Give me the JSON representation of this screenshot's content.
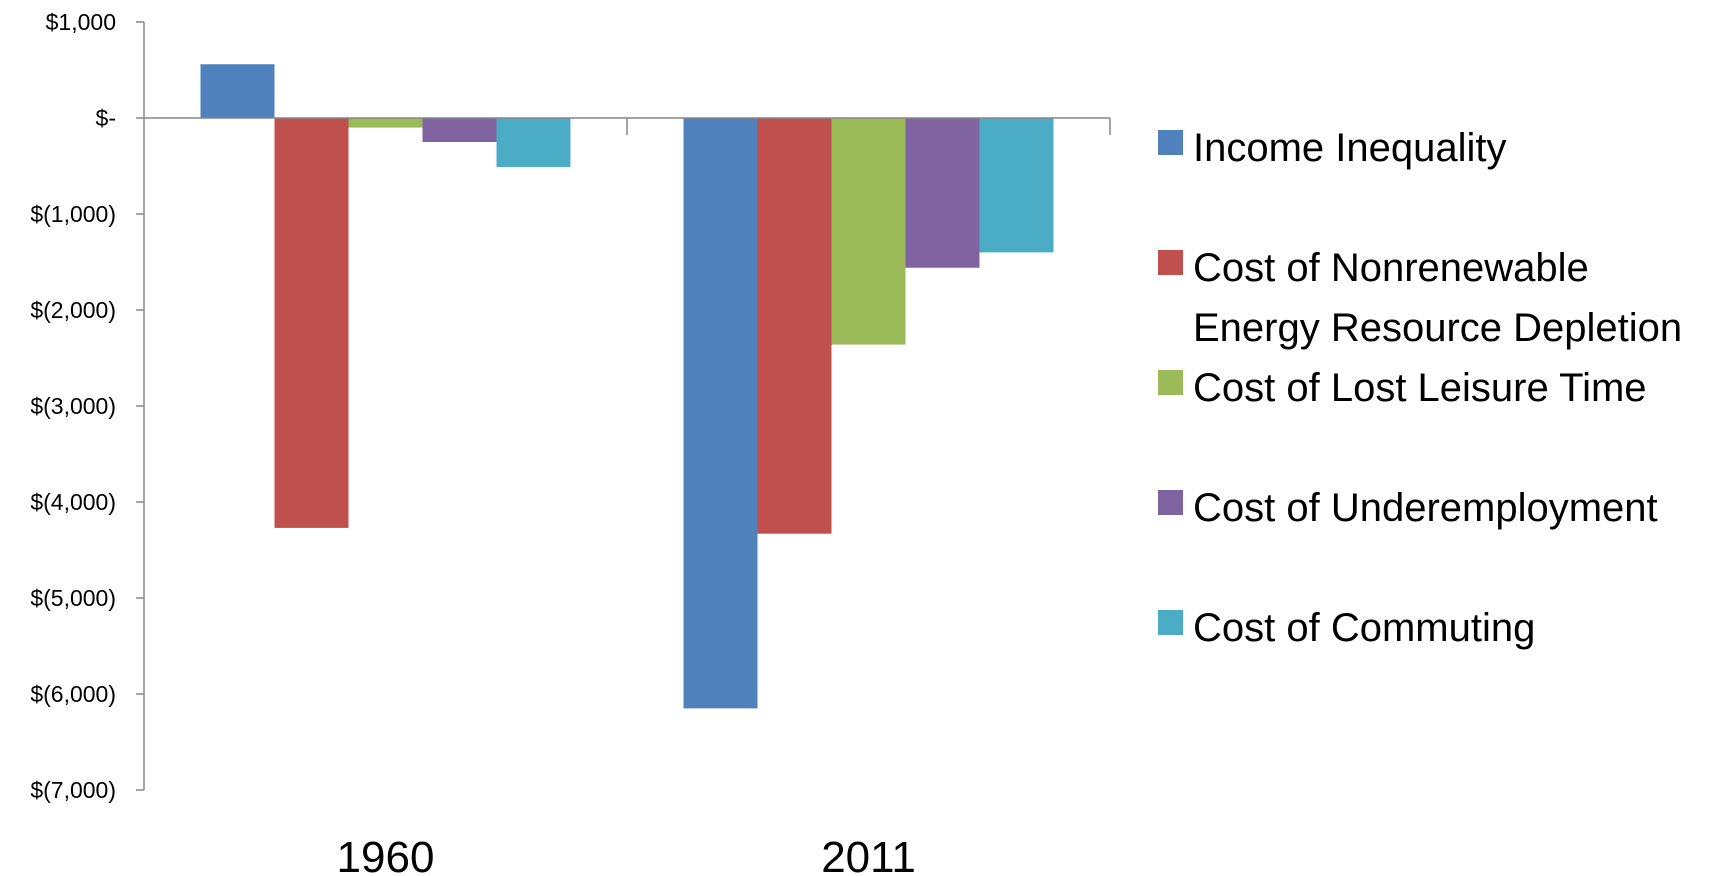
{
  "chart_data": {
    "type": "bar",
    "categories": [
      "1960",
      "2011"
    ],
    "series": [
      {
        "name": "Income Inequality",
        "color": "#4F81BD",
        "values": [
          560,
          -6150
        ]
      },
      {
        "name": "Cost of Nonrenewable Energy Resource Depletion",
        "color": "#C0504D",
        "values": [
          -4270,
          -4330
        ]
      },
      {
        "name": "Cost of Lost Leisure Time",
        "color": "#9BBB59",
        "values": [
          -100,
          -2360
        ]
      },
      {
        "name": "Cost of Underemployment",
        "color": "#8064A2",
        "values": [
          -250,
          -1560
        ]
      },
      {
        "name": "Cost of Commuting",
        "color": "#4BACC6",
        "values": [
          -510,
          -1400
        ]
      }
    ],
    "ylim": [
      -7000,
      1000
    ],
    "yticks": [
      1000,
      0,
      -1000,
      -2000,
      -3000,
      -4000,
      -5000,
      -6000,
      -7000
    ],
    "ytick_labels": [
      "$1,000",
      "$-",
      "$(1,000)",
      "$(2,000)",
      "$(3,000)",
      "$(4,000)",
      "$(5,000)",
      "$(6,000)",
      "$(7,000)"
    ],
    "title": "",
    "xlabel": "",
    "ylabel": "",
    "grid": false,
    "legend_position": "right"
  }
}
